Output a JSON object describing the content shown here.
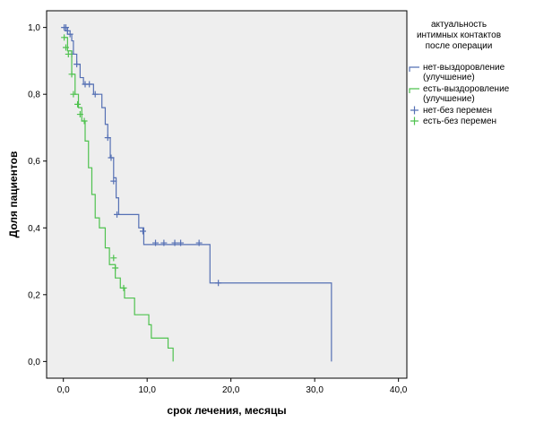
{
  "chart_data": {
    "type": "line",
    "title": "",
    "xlabel": "срок лечения, месяцы",
    "ylabel": "Доля пациентов",
    "xlim": [
      -2,
      41
    ],
    "ylim": [
      -0.05,
      1.05
    ],
    "grid": false,
    "background": "#eeeeee",
    "x_ticks": [
      0,
      10,
      20,
      30,
      40
    ],
    "x_tick_labels": [
      "0,0",
      "10,0",
      "20,0",
      "30,0",
      "40,0"
    ],
    "y_ticks": [
      0.0,
      0.2,
      0.4,
      0.6,
      0.8,
      1.0
    ],
    "y_tick_labels": [
      "0,0",
      "0,2",
      "0,4",
      "0,6",
      "0,8",
      "1,0"
    ],
    "legend_position": "right",
    "legend_title_lines": [
      "актуальность",
      "интимных контактов",
      "после операции"
    ],
    "legend": [
      {
        "label_lines": [
          "нет-выздоровление",
          "(улучшение)"
        ],
        "kind": "line",
        "series": 0
      },
      {
        "label_lines": [
          "есть-выздоровление",
          "(улучшение)"
        ],
        "kind": "line",
        "series": 1
      },
      {
        "label_lines": [
          "нет-без перемен"
        ],
        "kind": "censor",
        "series": 0
      },
      {
        "label_lines": [
          "есть-без перемен"
        ],
        "kind": "censor",
        "series": 1
      }
    ],
    "series": [
      {
        "color": "#5570b4",
        "steps": [
          [
            0,
            1.0
          ],
          [
            0.5,
            0.98
          ],
          [
            1.0,
            0.96
          ],
          [
            1.2,
            0.92
          ],
          [
            1.6,
            0.89
          ],
          [
            2.0,
            0.85
          ],
          [
            2.4,
            0.83
          ],
          [
            3.6,
            0.8
          ],
          [
            4.6,
            0.76
          ],
          [
            5.0,
            0.71
          ],
          [
            5.3,
            0.67
          ],
          [
            5.6,
            0.61
          ],
          [
            6.0,
            0.55
          ],
          [
            6.3,
            0.49
          ],
          [
            6.6,
            0.44
          ],
          [
            9.0,
            0.4
          ],
          [
            9.6,
            0.35
          ],
          [
            17.5,
            0.235
          ],
          [
            32.0,
            0.0
          ]
        ],
        "censored": [
          [
            0.1,
            1.0
          ],
          [
            0.3,
            1.0
          ],
          [
            0.5,
            0.99
          ],
          [
            0.8,
            0.98
          ],
          [
            1.0,
            0.92
          ],
          [
            1.6,
            0.89
          ],
          [
            2.6,
            0.83
          ],
          [
            3.1,
            0.83
          ],
          [
            3.8,
            0.8
          ],
          [
            5.3,
            0.67
          ],
          [
            5.7,
            0.61
          ],
          [
            6.0,
            0.54
          ],
          [
            6.4,
            0.44
          ],
          [
            9.5,
            0.39
          ],
          [
            11.0,
            0.355
          ],
          [
            12.0,
            0.355
          ],
          [
            13.3,
            0.355
          ],
          [
            14.0,
            0.355
          ],
          [
            16.2,
            0.355
          ],
          [
            18.5,
            0.235
          ]
        ]
      },
      {
        "color": "#4fc24f",
        "steps": [
          [
            0,
            0.97
          ],
          [
            0.5,
            0.93
          ],
          [
            1.0,
            0.86
          ],
          [
            1.4,
            0.8
          ],
          [
            1.8,
            0.76
          ],
          [
            2.2,
            0.72
          ],
          [
            2.6,
            0.66
          ],
          [
            3.0,
            0.58
          ],
          [
            3.4,
            0.5
          ],
          [
            3.8,
            0.43
          ],
          [
            4.3,
            0.4
          ],
          [
            5.0,
            0.34
          ],
          [
            5.5,
            0.29
          ],
          [
            6.2,
            0.25
          ],
          [
            6.8,
            0.22
          ],
          [
            7.3,
            0.19
          ],
          [
            8.5,
            0.14
          ],
          [
            10.2,
            0.11
          ],
          [
            10.5,
            0.07
          ],
          [
            12.5,
            0.04
          ],
          [
            13.1,
            0.0
          ]
        ],
        "censored": [
          [
            0.1,
            0.97
          ],
          [
            0.3,
            0.94
          ],
          [
            0.6,
            0.92
          ],
          [
            1.0,
            0.86
          ],
          [
            1.2,
            0.8
          ],
          [
            1.7,
            0.77
          ],
          [
            2.0,
            0.74
          ],
          [
            2.5,
            0.72
          ],
          [
            6.0,
            0.31
          ],
          [
            6.2,
            0.28
          ],
          [
            7.2,
            0.22
          ]
        ]
      }
    ]
  }
}
